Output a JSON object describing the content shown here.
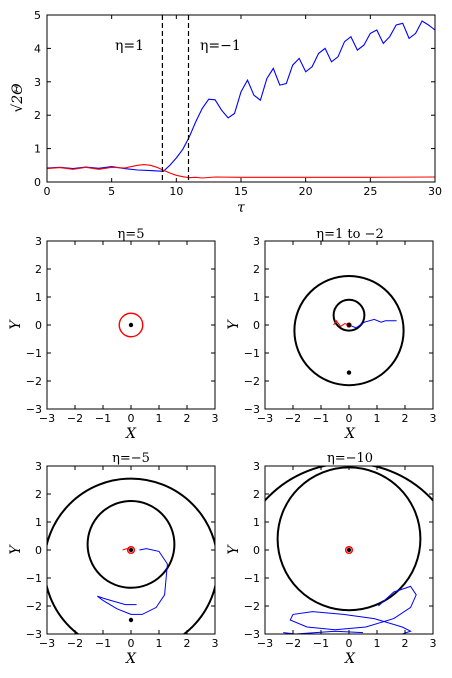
{
  "chart_data": [
    {
      "type": "line",
      "xlabel": "τ",
      "ylabel": "√2Θ",
      "xlim": [
        0,
        30
      ],
      "ylim": [
        0,
        5
      ],
      "xticks": [
        "0",
        "5",
        "10",
        "15",
        "20",
        "25",
        "30"
      ],
      "yticks": [
        "0",
        "1",
        "2",
        "3",
        "4",
        "5"
      ],
      "vlines": [
        9,
        10.8
      ],
      "annotations": [
        "η=1",
        "η=−1"
      ],
      "series": [
        {
          "color": "#0000ff",
          "x": [
            0,
            1,
            2,
            3,
            4,
            5,
            6,
            7,
            8,
            9,
            9.5,
            10,
            10.5,
            11,
            11.5,
            12,
            12.5,
            13,
            13.5,
            14,
            14.5,
            15,
            15.5,
            16,
            16.5,
            17,
            17.5,
            18,
            18.5,
            19,
            19.5,
            20,
            20.5,
            21,
            21.5,
            22,
            22.5,
            23,
            23.5,
            24,
            24.5,
            25,
            25.5,
            26,
            26.5,
            27,
            27.5,
            28,
            28.5,
            29,
            29.5,
            30
          ],
          "y": [
            0.42,
            0.44,
            0.4,
            0.45,
            0.41,
            0.46,
            0.4,
            0.36,
            0.34,
            0.32,
            0.5,
            0.72,
            0.98,
            1.35,
            1.8,
            2.2,
            2.48,
            2.46,
            2.15,
            1.92,
            2.05,
            2.7,
            3.05,
            2.6,
            2.45,
            3.1,
            3.4,
            2.9,
            2.95,
            3.5,
            3.7,
            3.3,
            3.45,
            3.85,
            4.0,
            3.6,
            3.75,
            4.2,
            4.35,
            3.95,
            4.1,
            4.45,
            4.55,
            4.15,
            4.35,
            4.7,
            4.75,
            4.3,
            4.45,
            4.82,
            4.7,
            4.55
          ]
        },
        {
          "color": "#ff0000",
          "x": [
            0,
            1,
            2,
            3,
            4,
            5,
            6,
            7,
            7.5,
            8,
            8.5,
            9,
            9.5,
            10,
            10.5,
            11,
            11.5,
            12,
            13,
            15,
            20,
            25,
            30
          ],
          "y": [
            0.4,
            0.43,
            0.38,
            0.44,
            0.38,
            0.44,
            0.42,
            0.5,
            0.52,
            0.5,
            0.44,
            0.35,
            0.27,
            0.2,
            0.16,
            0.13,
            0.14,
            0.12,
            0.15,
            0.14,
            0.14,
            0.14,
            0.15
          ]
        }
      ]
    },
    {
      "type": "line",
      "title": "η=5",
      "xlabel": "X",
      "ylabel": "Y",
      "xlim": [
        -3,
        3
      ],
      "ylim": [
        -3,
        3
      ],
      "ticks": [
        "−3",
        "−2",
        "−1",
        "0",
        "1",
        "2",
        "3"
      ],
      "black_circles": [],
      "points": [
        [
          0,
          0
        ]
      ],
      "red_circles": [
        {
          "cx": 0,
          "cy": 0,
          "r": 0.42
        }
      ],
      "blue_paths": []
    },
    {
      "type": "line",
      "title": "η=1 to −2",
      "xlabel": "X",
      "ylabel": "Y",
      "xlim": [
        -3,
        3
      ],
      "ylim": [
        -3,
        3
      ],
      "ticks": [
        "−3",
        "−2",
        "−1",
        "0",
        "1",
        "2",
        "3"
      ],
      "black_circles": [
        {
          "cx": 0,
          "cy": 0.35,
          "r": 0.55
        },
        {
          "cx": 0,
          "cy": -0.2,
          "r": 1.95
        }
      ],
      "points": [
        [
          0,
          0
        ],
        [
          0,
          -1.7
        ]
      ],
      "red_circles": [
        {
          "cx": 0,
          "cy": 0,
          "r": 0.07
        }
      ],
      "red_paths": [
        [
          [
            -0.55,
            0.0
          ],
          [
            -0.45,
            0.15
          ],
          [
            -0.3,
            -0.05
          ],
          [
            -0.15,
            0.05
          ],
          [
            0,
            0
          ]
        ]
      ],
      "blue_paths": [
        [
          [
            0,
            0
          ],
          [
            0.25,
            -0.1
          ],
          [
            0.55,
            0.1
          ],
          [
            0.9,
            0.2
          ],
          [
            1.15,
            0.1
          ],
          [
            1.3,
            0.15
          ],
          [
            1.7,
            0.15
          ]
        ]
      ]
    },
    {
      "type": "line",
      "title": "η=−5",
      "xlabel": "X",
      "ylabel": "Y",
      "xlim": [
        -3,
        3
      ],
      "ylim": [
        -3,
        3
      ],
      "ticks": [
        "−3",
        "−2",
        "−1",
        "0",
        "1",
        "2",
        "3"
      ],
      "black_circles": [
        {
          "cx": 0,
          "cy": 0.2,
          "r": 1.55
        },
        {
          "cx": 0,
          "cy": -0.55,
          "r": 3.1
        }
      ],
      "points": [
        [
          0,
          0
        ],
        [
          0,
          -2.5
        ]
      ],
      "red_circles": [
        {
          "cx": 0,
          "cy": 0,
          "r": 0.12
        }
      ],
      "red_paths": [
        [
          [
            -0.3,
            0.0
          ],
          [
            -0.15,
            0.05
          ],
          [
            0,
            0
          ]
        ]
      ],
      "blue_paths": [
        [
          [
            0.3,
            0.0
          ],
          [
            0.55,
            0.05
          ],
          [
            1.0,
            -0.05
          ],
          [
            1.3,
            -0.5
          ],
          [
            1.2,
            -1.6
          ],
          [
            0.9,
            -2.05
          ],
          [
            0.4,
            -2.3
          ],
          [
            0.0,
            -2.3
          ],
          [
            -0.5,
            -2.1
          ],
          [
            -1.0,
            -1.8
          ],
          [
            -1.2,
            -1.65
          ],
          [
            -0.9,
            -1.75
          ],
          [
            -0.2,
            -1.95
          ],
          [
            0.2,
            -1.95
          ]
        ]
      ]
    },
    {
      "type": "line",
      "title": "η=−10",
      "xlabel": "X",
      "ylabel": "Y",
      "xlim": [
        -3,
        3
      ],
      "ylim": [
        -3,
        3
      ],
      "ticks": [
        "−3",
        "−2",
        "−1",
        "0",
        "1",
        "2",
        "3"
      ],
      "black_circles": [
        {
          "cx": 0,
          "cy": 0.4,
          "r": 2.55
        },
        {
          "cx": 0,
          "cy": -0.95,
          "r": 4.05
        }
      ],
      "points": [
        [
          0,
          0
        ]
      ],
      "red_circles": [
        {
          "cx": 0,
          "cy": 0,
          "r": 0.12
        }
      ],
      "blue_paths": [
        [
          [
            1.05,
            -2.0
          ],
          [
            1.6,
            -1.5
          ],
          [
            2.2,
            -1.3
          ],
          [
            2.4,
            -1.6
          ],
          [
            2.2,
            -2.05
          ],
          [
            1.6,
            -2.45
          ],
          [
            0.6,
            -2.75
          ],
          [
            -0.5,
            -2.85
          ],
          [
            -1.5,
            -2.75
          ],
          [
            -2.1,
            -2.5
          ],
          [
            -2.0,
            -2.3
          ],
          [
            -1.3,
            -2.2
          ],
          [
            -0.2,
            -2.3
          ],
          [
            0.9,
            -2.45
          ],
          [
            1.9,
            -2.75
          ],
          [
            2.2,
            -2.9
          ],
          [
            1.9,
            -3.0
          ],
          [
            0.9,
            -3.05
          ]
        ],
        [
          [
            -2.35,
            -2.95
          ],
          [
            -1.9,
            -3.0
          ],
          [
            -1.2,
            -2.95
          ],
          [
            -0.5,
            -2.9
          ],
          [
            0.5,
            -2.95
          ]
        ]
      ]
    }
  ]
}
